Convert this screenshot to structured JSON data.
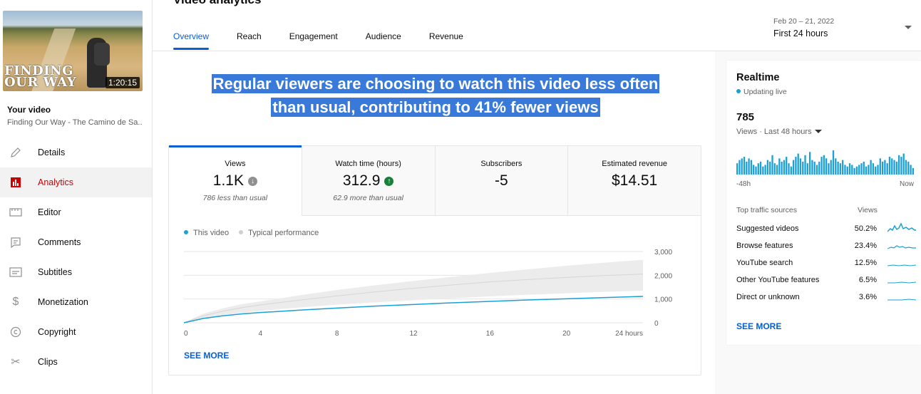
{
  "page_title": "Video analytics",
  "sidebar": {
    "thumbnail": {
      "art_line1": "FINDING",
      "art_line2": "OUR WAY",
      "duration": "1:20:15"
    },
    "your_video_label": "Your video",
    "video_title": "Finding Our Way - The Camino de Sa...",
    "items": [
      {
        "label": "Details",
        "icon": "pencil-icon"
      },
      {
        "label": "Analytics",
        "icon": "analytics-icon",
        "active": true
      },
      {
        "label": "Editor",
        "icon": "editor-icon"
      },
      {
        "label": "Comments",
        "icon": "comments-icon"
      },
      {
        "label": "Subtitles",
        "icon": "subtitles-icon"
      },
      {
        "label": "Monetization",
        "icon": "dollar-icon"
      },
      {
        "label": "Copyright",
        "icon": "copyright-icon"
      },
      {
        "label": "Clips",
        "icon": "scissors-icon"
      }
    ]
  },
  "tabs": [
    "Overview",
    "Reach",
    "Engagement",
    "Audience",
    "Revenue"
  ],
  "date_selector": {
    "range": "Feb 20 – 21, 2022",
    "label": "First 24 hours"
  },
  "headline": {
    "line1": "Regular viewers are choosing to watch this video less often",
    "line2": "than usual, contributing to 41% fewer views"
  },
  "metrics": [
    {
      "label": "Views",
      "value": "1.1K",
      "trend": "down",
      "sub": "786 less than usual"
    },
    {
      "label": "Watch time (hours)",
      "value": "312.9",
      "trend": "up",
      "sub": "62.9 more than usual"
    },
    {
      "label": "Subscribers",
      "value": "-5",
      "trend": "",
      "sub": ""
    },
    {
      "label": "Estimated revenue",
      "value": "$14.51",
      "trend": "",
      "sub": ""
    }
  ],
  "legend": {
    "this_video": "This video",
    "typical": "Typical performance"
  },
  "see_more": "SEE MORE",
  "chart_data": {
    "type": "line",
    "x": [
      0,
      1,
      2,
      3,
      4,
      6,
      8,
      10,
      12,
      14,
      16,
      18,
      20,
      22,
      24
    ],
    "x_ticks": [
      "0",
      "4",
      "8",
      "12",
      "16",
      "20",
      "24 hours"
    ],
    "x_tick_values": [
      0,
      4,
      8,
      12,
      16,
      20,
      24
    ],
    "y_ticks": [
      "0",
      "1,000",
      "2,000",
      "3,000"
    ],
    "y_tick_values": [
      0,
      1000,
      2000,
      3000
    ],
    "ylim": [
      0,
      3000
    ],
    "xlim": [
      0,
      24
    ],
    "series": [
      {
        "name": "This video",
        "color": "#1a9fd6",
        "values": [
          0,
          180,
          290,
          370,
          430,
          530,
          620,
          700,
          770,
          840,
          900,
          960,
          1010,
          1060,
          1110
        ]
      },
      {
        "name": "Typical performance",
        "color": "#cccccc",
        "band_low": [
          0,
          200,
          320,
          420,
          500,
          640,
          760,
          860,
          950,
          1030,
          1110,
          1180,
          1240,
          1300,
          1350
        ],
        "band_high": [
          0,
          380,
          600,
          780,
          900,
          1150,
          1380,
          1580,
          1760,
          1930,
          2100,
          2250,
          2400,
          2530,
          2650
        ],
        "median": [
          0,
          290,
          480,
          630,
          750,
          950,
          1130,
          1300,
          1450,
          1590,
          1720,
          1820,
          1910,
          1990,
          2050
        ]
      }
    ]
  },
  "realtime": {
    "title": "Realtime",
    "status": "Updating live",
    "count": "785",
    "metric_label": "Views · Last 48 hours",
    "axis_left": "-48h",
    "axis_right": "Now",
    "bars": [
      14,
      18,
      20,
      22,
      16,
      20,
      18,
      12,
      10,
      14,
      16,
      10,
      12,
      18,
      16,
      24,
      14,
      12,
      20,
      16,
      18,
      22,
      14,
      10,
      18,
      22,
      26,
      20,
      16,
      24,
      14,
      28,
      18,
      16,
      12,
      16,
      22,
      24,
      20,
      14,
      18,
      30,
      20,
      16,
      14,
      18,
      12,
      10,
      14,
      12,
      8,
      10,
      12,
      14,
      16,
      10,
      12,
      18,
      14,
      10,
      12,
      20,
      16,
      18,
      14,
      22,
      20,
      18,
      16,
      24,
      22,
      26,
      18,
      16,
      12,
      8
    ],
    "traffic_header": {
      "label": "Top traffic sources",
      "views": "Views"
    },
    "traffic_sources": [
      {
        "name": "Suggested videos",
        "pct": "50.2%"
      },
      {
        "name": "Browse features",
        "pct": "23.4%"
      },
      {
        "name": "YouTube search",
        "pct": "12.5%"
      },
      {
        "name": "Other YouTube features",
        "pct": "6.5%"
      },
      {
        "name": "Direct or unknown",
        "pct": "3.6%"
      }
    ],
    "see_more": "SEE MORE"
  }
}
